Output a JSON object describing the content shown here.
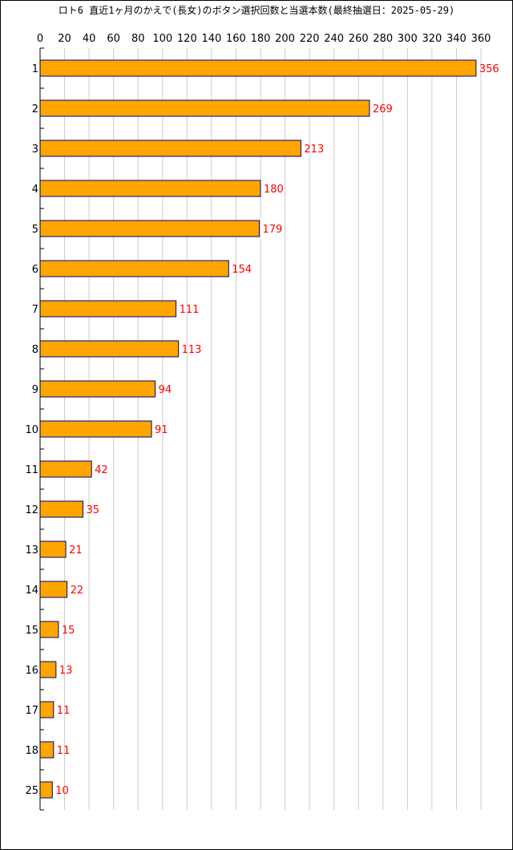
{
  "chart_data": {
    "type": "bar",
    "orientation": "horizontal",
    "title": "ロト6 直近1ヶ月のかえで(長女)のボタン選択回数と当選本数(最終抽選日：2025-05-29)",
    "categories": [
      "1",
      "2",
      "3",
      "4",
      "5",
      "6",
      "7",
      "8",
      "9",
      "10",
      "11",
      "12",
      "13",
      "14",
      "15",
      "16",
      "17",
      "18",
      "25"
    ],
    "values": [
      356,
      269,
      213,
      180,
      179,
      154,
      111,
      113,
      94,
      91,
      42,
      35,
      21,
      22,
      15,
      13,
      11,
      11,
      10
    ],
    "x_ticks": [
      0,
      20,
      40,
      60,
      80,
      100,
      120,
      140,
      160,
      180,
      200,
      220,
      240,
      260,
      280,
      300,
      320,
      340,
      360
    ],
    "xlim": [
      0,
      360
    ],
    "xlabel": "",
    "ylabel": "",
    "grid": "vertical",
    "legend": "none",
    "axis_position": "top",
    "colors": {
      "bar_fill": "#FFA500",
      "bar_stroke": "#000080",
      "data_label": "#FF0000",
      "grid": "#CCCCCC",
      "axis": "#000000",
      "text": "#000000"
    }
  }
}
